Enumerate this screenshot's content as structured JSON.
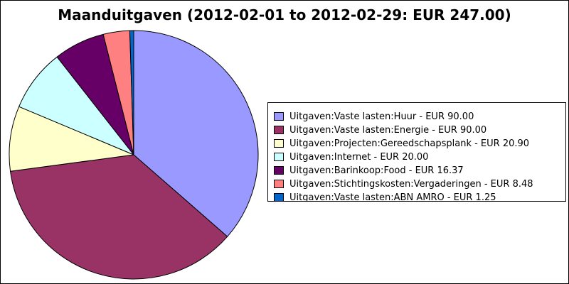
{
  "chart_data": {
    "type": "pie",
    "title": "Maanduitgaven (2012-02-01 to 2012-02-29: EUR 247.00)",
    "slices": [
      {
        "label": "Uitgaven:Vaste lasten:Huur - EUR 90.00",
        "value": 90.0,
        "color": "#9999ff"
      },
      {
        "label": "Uitgaven:Vaste lasten:Energie - EUR 90.00",
        "value": 90.0,
        "color": "#993366"
      },
      {
        "label": "Uitgaven:Projecten:Gereedschapsplank - EUR 20.90",
        "value": 20.9,
        "color": "#ffffcc"
      },
      {
        "label": "Uitgaven:Internet - EUR 20.00",
        "value": 20.0,
        "color": "#ccffff"
      },
      {
        "label": "Uitgaven:Barinkoop:Food - EUR 16.37",
        "value": 16.37,
        "color": "#660066"
      },
      {
        "label": "Uitgaven:Stichtingskosten:Vergaderingen - EUR 8.48",
        "value": 8.48,
        "color": "#ff8080"
      },
      {
        "label": "Uitgaven:Vaste lasten:ABN AMRO - EUR 1.25",
        "value": 1.25,
        "color": "#0066cc"
      }
    ],
    "start": "12 o'clock",
    "direction": "clockwise",
    "legend_position": "right"
  }
}
